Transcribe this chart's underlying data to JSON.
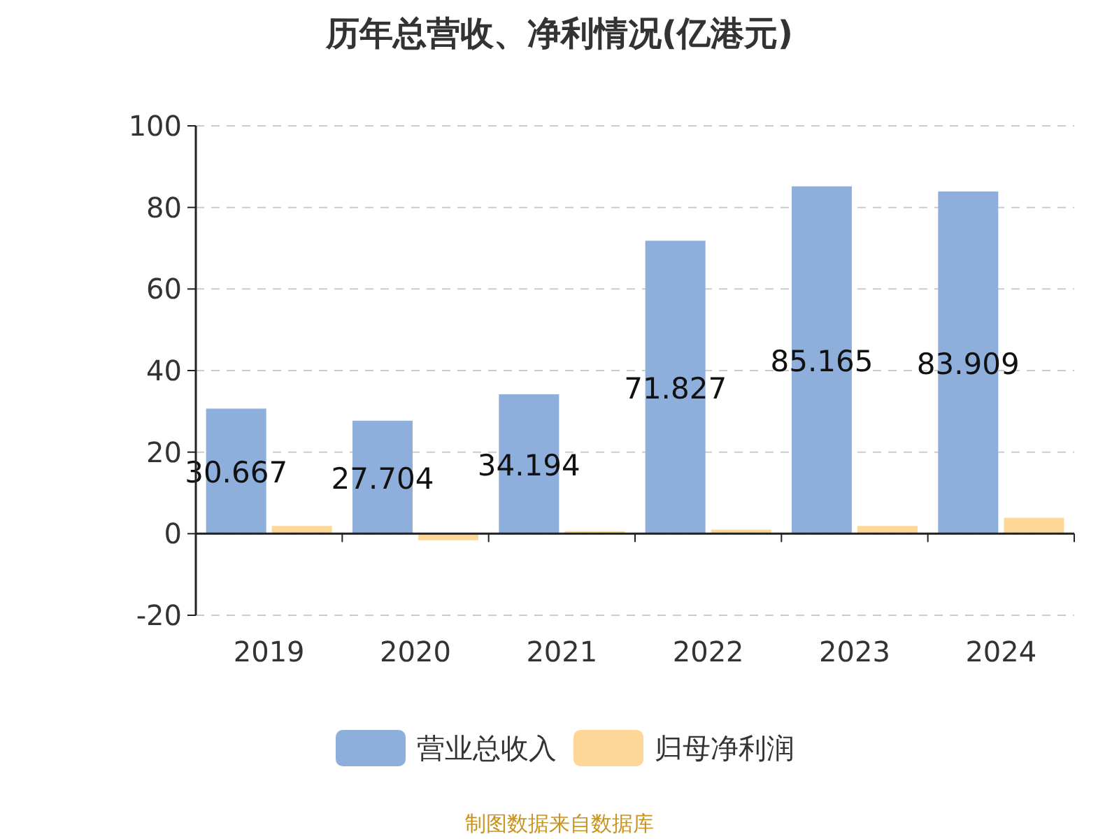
{
  "chart_data": {
    "type": "bar",
    "title": "历年总营收、净利情况(亿港元)",
    "categories": [
      "2019",
      "2020",
      "2021",
      "2022",
      "2023",
      "2024"
    ],
    "series": [
      {
        "name": "营业总收入",
        "color": "#8eaedb",
        "values": [
          30.667,
          27.704,
          34.194,
          71.827,
          85.165,
          83.909
        ],
        "value_labels": [
          "30.667",
          "27.704",
          "34.194",
          "71.827",
          "85.165",
          "83.909"
        ]
      },
      {
        "name": "归母净利润",
        "color": "#fdd797",
        "values": [
          1.9,
          -1.6,
          0.6,
          1.0,
          1.9,
          3.9
        ]
      }
    ],
    "ylim": [
      -20,
      100
    ],
    "yticks": [
      -20,
      0,
      20,
      40,
      60,
      80,
      100
    ],
    "grid": "y",
    "legend": "bottom",
    "annotations": [
      "制图数据来自数据库"
    ]
  }
}
